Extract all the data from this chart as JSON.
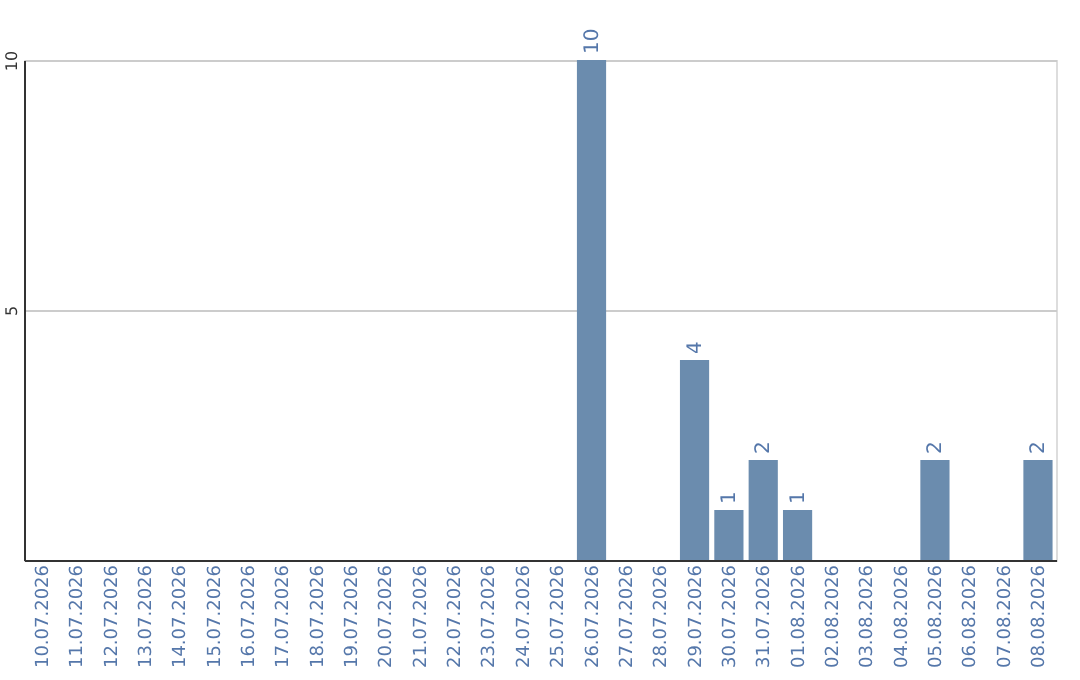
{
  "chart_data": {
    "type": "bar",
    "categories": [
      "10.07.2026",
      "11.07.2026",
      "12.07.2026",
      "13.07.2026",
      "14.07.2026",
      "15.07.2026",
      "16.07.2026",
      "17.07.2026",
      "18.07.2026",
      "19.07.2026",
      "20.07.2026",
      "21.07.2026",
      "22.07.2026",
      "23.07.2026",
      "24.07.2026",
      "25.07.2026",
      "26.07.2026",
      "27.07.2026",
      "28.07.2026",
      "29.07.2026",
      "30.07.2026",
      "31.07.2026",
      "01.08.2026",
      "02.08.2026",
      "03.08.2026",
      "04.08.2026",
      "05.08.2026",
      "06.08.2026",
      "07.08.2026",
      "08.08.2026"
    ],
    "values": [
      0,
      0,
      0,
      0,
      0,
      0,
      0,
      0,
      0,
      0,
      0,
      0,
      0,
      0,
      0,
      0,
      10,
      0,
      0,
      4,
      1,
      2,
      1,
      0,
      0,
      0,
      2,
      0,
      0,
      2
    ],
    "value_labels": [
      null,
      null,
      null,
      null,
      null,
      null,
      null,
      null,
      null,
      null,
      null,
      null,
      null,
      null,
      null,
      null,
      "10",
      null,
      null,
      "4",
      "1",
      "2",
      "1",
      null,
      null,
      null,
      "2",
      null,
      null,
      "2"
    ],
    "color": "#6b8cae",
    "ylim": [
      0,
      10
    ],
    "yticks": [
      5,
      10
    ],
    "grid": "y"
  }
}
